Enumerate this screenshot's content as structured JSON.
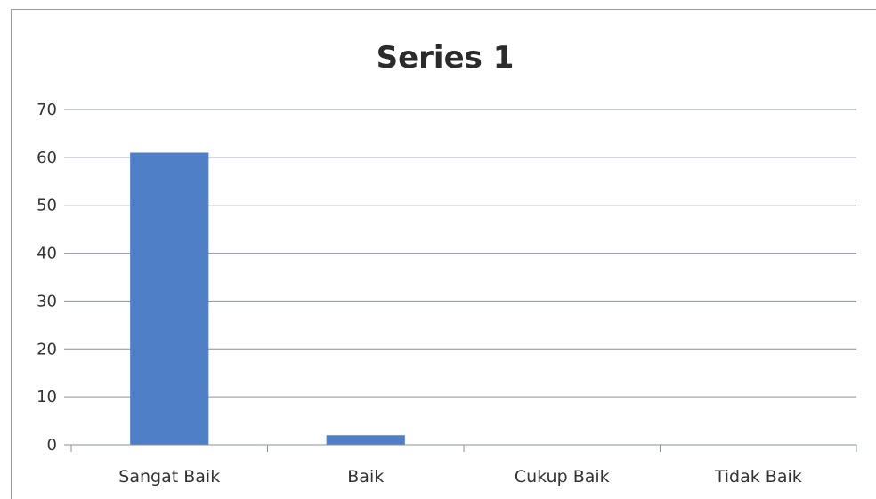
{
  "chart_data": {
    "type": "bar",
    "title": "Series 1",
    "categories": [
      "Sangat Baik",
      "Baik",
      "Cukup Baik",
      "Tidak Baik"
    ],
    "values": [
      61,
      2,
      0,
      0
    ],
    "ylim": [
      0,
      70
    ],
    "yticks": [
      "0",
      "10",
      "20",
      "30",
      "40",
      "50",
      "60",
      "70"
    ],
    "grid": true,
    "legend": "none",
    "bar_color": "#4f7fc6"
  }
}
